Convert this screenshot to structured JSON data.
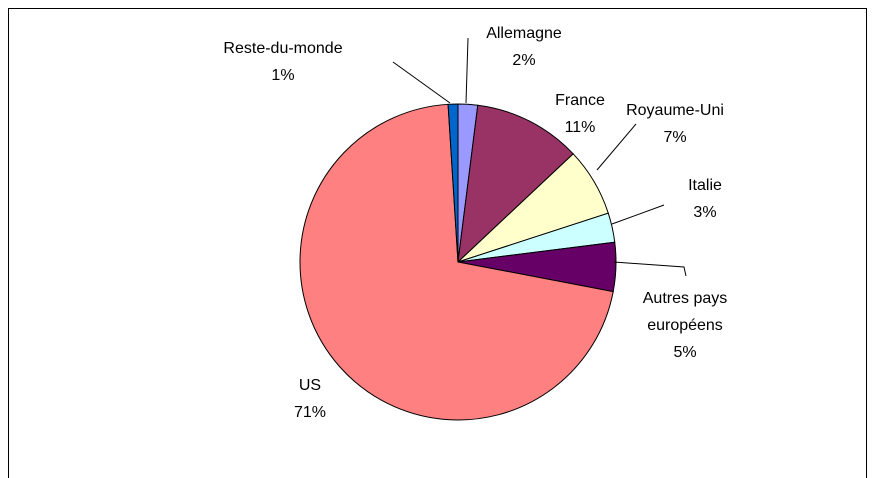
{
  "chart_data": {
    "type": "pie",
    "categories": [
      "Allemagne",
      "France",
      "Royaume-Uni",
      "Italie",
      "Autres pays européens",
      "US",
      "Reste-du-monde"
    ],
    "values": [
      2,
      11,
      7,
      3,
      5,
      71,
      1
    ],
    "value_labels": [
      "2%",
      "11%",
      "7%",
      "3%",
      "5%",
      "71%",
      "1%"
    ],
    "colors": [
      "#9999ff",
      "#993366",
      "#ffffcc",
      "#ccffff",
      "#660066",
      "#ff8080",
      "#0066cc"
    ]
  }
}
